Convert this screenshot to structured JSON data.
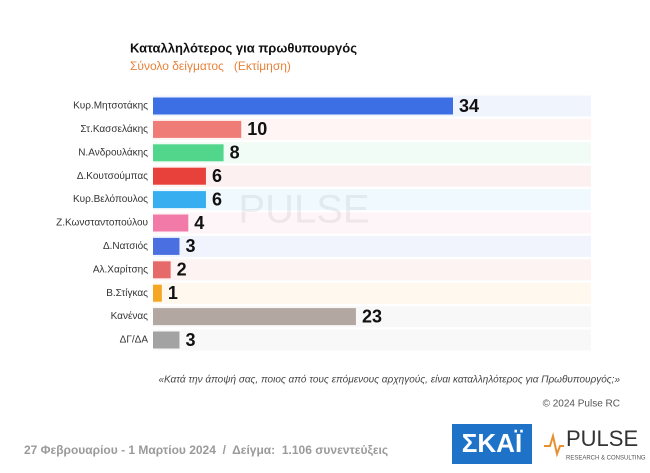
{
  "chart_data": {
    "type": "bar",
    "orientation": "horizontal",
    "title": "Καταλληλότερος για πρωθυπουργός",
    "subtitle": "Σύνολο δείγματος   (Εκτίμηση)",
    "categories": [
      "Κυρ.Μητσοτάκης",
      "Στ.Κασσελάκης",
      "Ν.Ανδρουλάκης",
      "Δ.Κουτσούμπας",
      "Κυρ.Βελόπουλος",
      "Ζ.Κωνσταντοπούλου",
      "Δ.Νατσιός",
      "Αλ.Χαρίτσης",
      "Β.Στίγκας",
      "Κανένας",
      "ΔΓ/ΔΑ"
    ],
    "values": [
      34,
      10,
      8,
      6,
      6,
      4,
      3,
      2,
      1,
      23,
      3
    ],
    "colors": [
      "#3b6fe3",
      "#f07c78",
      "#52d68c",
      "#e8403a",
      "#36aef0",
      "#f27aa8",
      "#4a6fe0",
      "#e66a6a",
      "#f5a623",
      "#b3a7a2",
      "#a3a3a3"
    ],
    "question": "«Κατά την άποψή σας, ποιος από τους επόμενους αρχηγούς, είναι καταλληλότερος για Πρωθυπουργός;»",
    "copyright": "© 2024 Pulse RC",
    "footer": "27 Φεβρουαρίου - 1 Μαρτίου 2024  /  Δείγμα:  1.106 συνεντεύξεις",
    "logo_skai": "ΣΚΑΪ",
    "logo_pulse": "PULSE",
    "logo_pulse_sub": "RESEARCH & CONSULTING"
  }
}
